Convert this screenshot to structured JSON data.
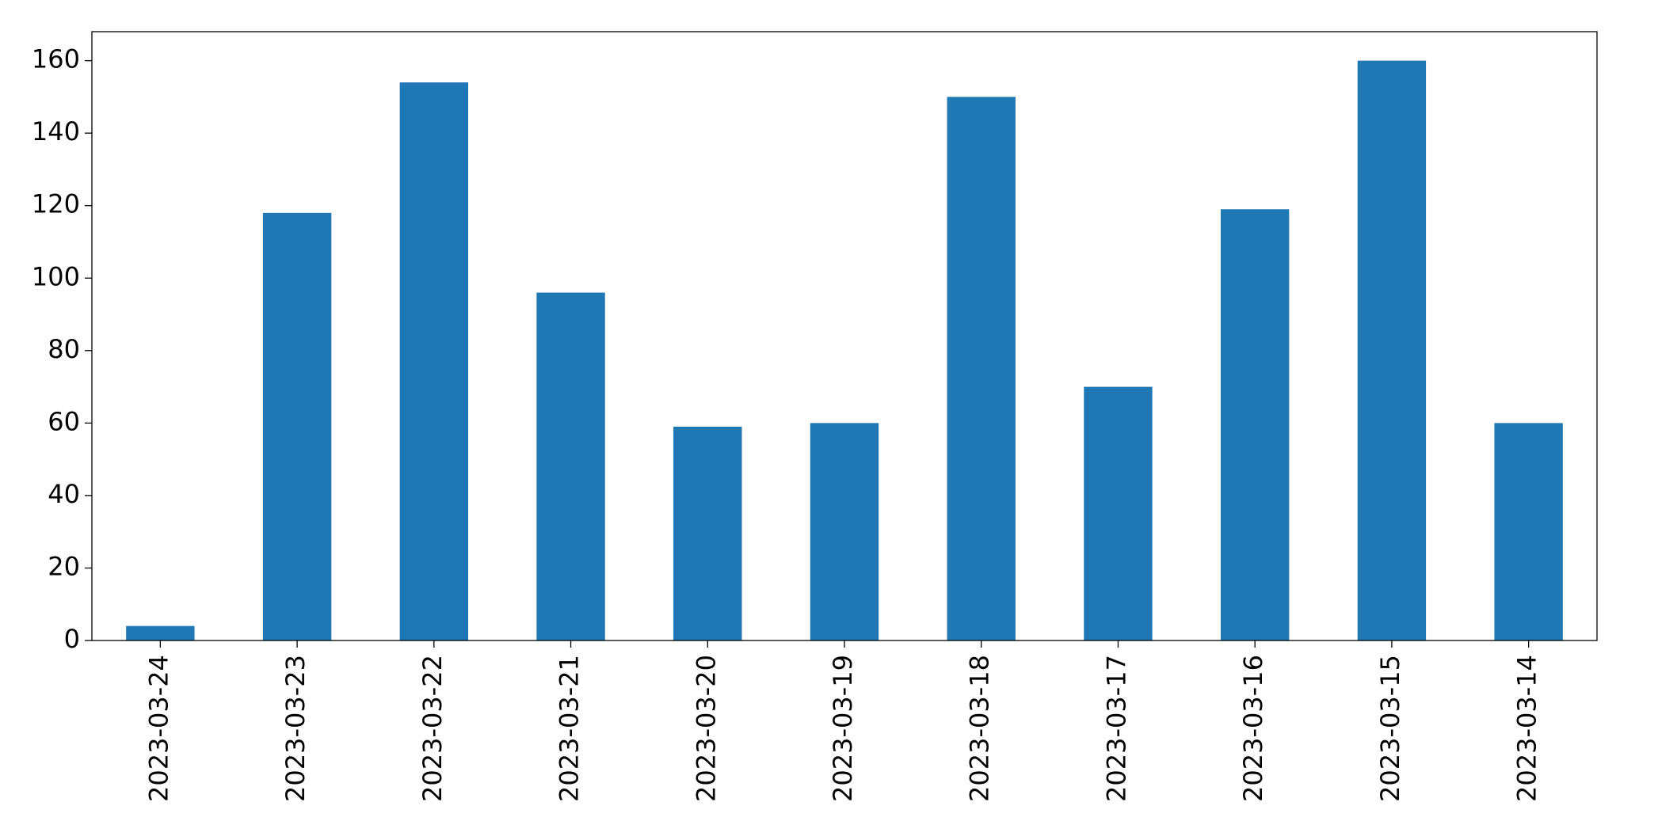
{
  "chart_data": {
    "type": "bar",
    "categories": [
      "2023-03-24",
      "2023-03-23",
      "2023-03-22",
      "2023-03-21",
      "2023-03-20",
      "2023-03-19",
      "2023-03-18",
      "2023-03-17",
      "2023-03-16",
      "2023-03-15",
      "2023-03-14"
    ],
    "values": [
      4,
      118,
      154,
      96,
      59,
      60,
      150,
      70,
      119,
      160,
      60
    ],
    "color": "#1f77b4",
    "ylim": [
      0,
      168
    ],
    "yticks": [
      0,
      20,
      40,
      60,
      80,
      100,
      120,
      140,
      160
    ],
    "grid": false
  }
}
